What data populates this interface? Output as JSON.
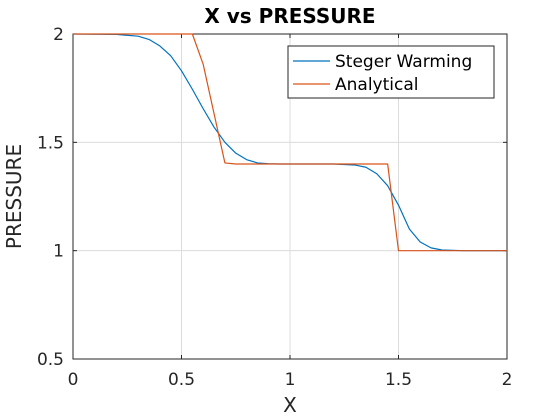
{
  "chart_data": {
    "type": "line",
    "title": "X vs PRESSURE",
    "xlabel": "X",
    "ylabel": "PRESSURE",
    "xlim": [
      0,
      2
    ],
    "ylim": [
      0.5,
      2
    ],
    "xticks": [
      0,
      0.5,
      1,
      1.5,
      2
    ],
    "xtick_labels": [
      "0",
      "0.5",
      "1",
      "1.5",
      "2"
    ],
    "yticks": [
      0.5,
      1,
      1.5,
      2
    ],
    "ytick_labels": [
      "0.5",
      "1",
      "1.5",
      "2"
    ],
    "grid": true,
    "legend_position": "top-right",
    "series": [
      {
        "name": "Steger Warming",
        "color": "#0072BD",
        "x": [
          0,
          0.2,
          0.3,
          0.35,
          0.4,
          0.45,
          0.5,
          0.55,
          0.6,
          0.65,
          0.7,
          0.75,
          0.8,
          0.85,
          0.9,
          0.95,
          1.0,
          1.1,
          1.2,
          1.3,
          1.35,
          1.4,
          1.45,
          1.5,
          1.55,
          1.6,
          1.65,
          1.7,
          1.8,
          1.9,
          2.0
        ],
        "y": [
          2.0,
          1.998,
          1.99,
          1.975,
          1.945,
          1.9,
          1.83,
          1.745,
          1.655,
          1.57,
          1.5,
          1.45,
          1.42,
          1.405,
          1.401,
          1.4,
          1.4,
          1.4,
          1.4,
          1.395,
          1.385,
          1.355,
          1.3,
          1.21,
          1.1,
          1.04,
          1.013,
          1.003,
          1.0,
          1.0,
          1.0
        ]
      },
      {
        "name": "Analytical",
        "color": "#D95319",
        "x": [
          0,
          0.55,
          0.6,
          0.7,
          0.75,
          1.0,
          1.45,
          1.5,
          1.6,
          2.0
        ],
        "y": [
          2.0,
          2.0,
          1.86,
          1.405,
          1.4,
          1.4,
          1.4,
          1.0,
          1.0,
          1.0
        ]
      }
    ]
  }
}
